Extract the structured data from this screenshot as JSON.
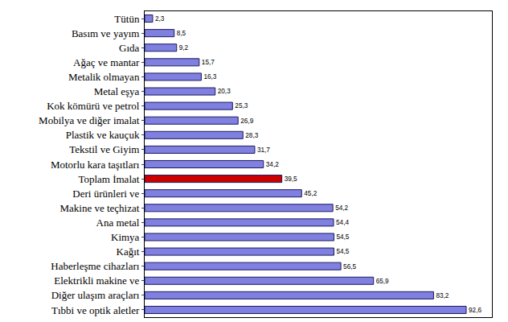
{
  "chart_data": {
    "type": "bar",
    "orientation": "horizontal",
    "categories": [
      "Tütün",
      "Basım ve yayım",
      "Gıda",
      "Ağaç ve mantar",
      "Metalik olmayan",
      "Metal eşya",
      "Kok kömürü ve petrol",
      "Mobilya ve diğer imalat",
      "Plastik ve kauçuk",
      "Tekstil ve Giyim",
      "Motorlu kara taşıtları",
      "Toplam İmalat",
      "Deri ürünleri ve",
      "Makine ve teçhizat",
      "Ana metal",
      "Kimya",
      "Kağıt",
      "Haberleşme cihazları",
      "Elektrikli makine ve",
      "Diğer ulaşım araçları",
      "Tıbbi ve optik aletler"
    ],
    "values": [
      2.3,
      8.5,
      9.2,
      15.7,
      16.3,
      20.3,
      25.3,
      26.9,
      28.3,
      31.7,
      34.2,
      39.5,
      45.2,
      54.2,
      54.4,
      54.5,
      54.5,
      56.5,
      65.9,
      83.2,
      92.6
    ],
    "value_labels": [
      "2,3",
      "8,5",
      "9,2",
      "15,7",
      "16,3",
      "20,3",
      "25,3",
      "26,9",
      "28,3",
      "31,7",
      "34,2",
      "39,5",
      "45,2",
      "54,2",
      "54,4",
      "54,5",
      "54,5",
      "56,5",
      "65,9",
      "83,2",
      "92,6"
    ],
    "colors": [
      "#8080e0",
      "#8080e0",
      "#8080e0",
      "#8080e0",
      "#8080e0",
      "#8080e0",
      "#8080e0",
      "#8080e0",
      "#8080e0",
      "#8080e0",
      "#8080e0",
      "#cc0000",
      "#8080e0",
      "#8080e0",
      "#8080e0",
      "#8080e0",
      "#8080e0",
      "#8080e0",
      "#8080e0",
      "#8080e0",
      "#8080e0"
    ],
    "xlim": [
      0,
      100
    ],
    "data_labels": true,
    "tick_labels": "y",
    "grid": false
  }
}
